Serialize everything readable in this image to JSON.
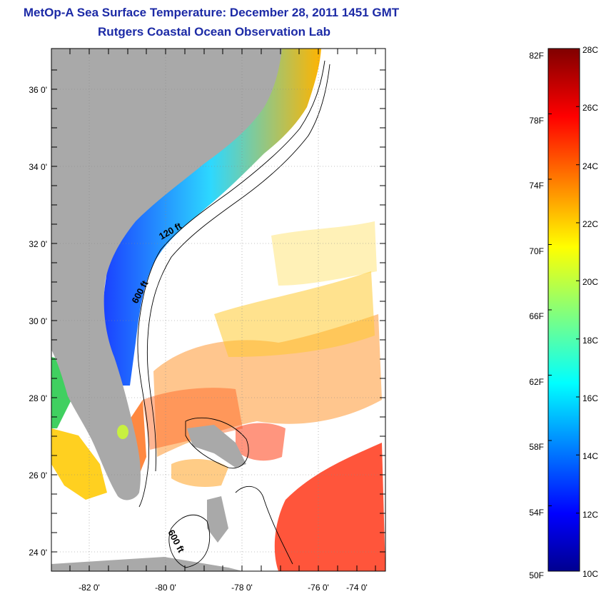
{
  "title": {
    "line1": "MetOp-A Sea Surface Temperature:  December 28, 2011 1451 GMT",
    "line2": "Rutgers Coastal Ocean Observation Lab"
  },
  "map": {
    "lon_ticks": [
      "-82 0'",
      "-80 0'",
      "-78 0'",
      "-76 0'",
      "-74 0'"
    ],
    "lat_ticks": [
      "36 0'",
      "34 0'",
      "32 0'",
      "30 0'",
      "28 0'",
      "26 0'",
      "24 0'"
    ],
    "contour_labels": [
      "120 ft",
      "600 ft",
      "600 ft"
    ],
    "colors": {
      "land": "#a9a9a9",
      "ocean_nodata": "#ffffff"
    }
  },
  "colorbar": {
    "fahrenheit": [
      "82F",
      "78F",
      "74F",
      "70F",
      "66F",
      "62F",
      "58F",
      "54F",
      "50F"
    ],
    "celsius": [
      "28C",
      "26C",
      "24C",
      "22C",
      "20C",
      "18C",
      "16C",
      "14C",
      "12C",
      "10C"
    ],
    "scale": "jet"
  }
}
